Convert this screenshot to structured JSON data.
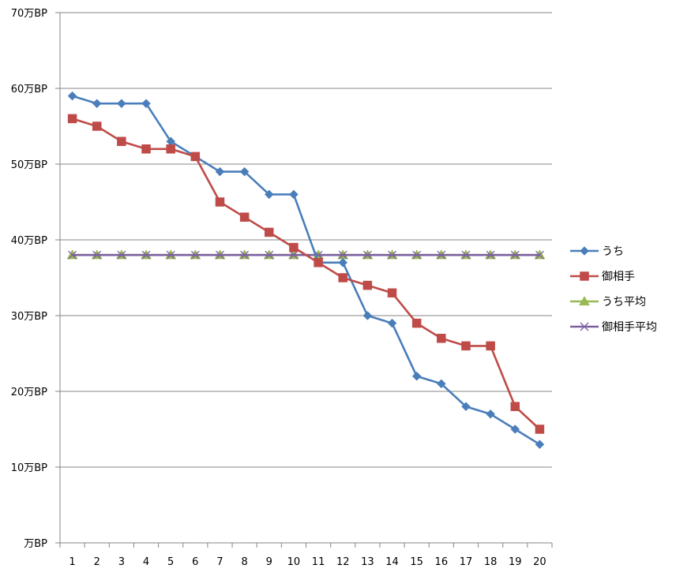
{
  "chart_data": {
    "type": "line",
    "title": "",
    "xlabel": "",
    "ylabel": "",
    "categories": [
      "1",
      "2",
      "3",
      "4",
      "5",
      "6",
      "7",
      "8",
      "9",
      "10",
      "11",
      "12",
      "13",
      "14",
      "15",
      "16",
      "17",
      "18",
      "19",
      "20"
    ],
    "ylim": [
      0,
      70
    ],
    "yticks": [
      {
        "value": 0,
        "label": "万BP"
      },
      {
        "value": 10,
        "label": "10万BP"
      },
      {
        "value": 20,
        "label": "20万BP"
      },
      {
        "value": 30,
        "label": "30万BP"
      },
      {
        "value": 40,
        "label": "40万BP"
      },
      {
        "value": 50,
        "label": "50万BP"
      },
      {
        "value": 60,
        "label": "60万BP"
      },
      {
        "value": 70,
        "label": "70万BP"
      }
    ],
    "grid": true,
    "legend_position": "right",
    "series": [
      {
        "name": "うち",
        "color": "#4a7ebb",
        "marker": "diamond",
        "values": [
          59,
          58,
          58,
          58,
          53,
          51,
          49,
          49,
          46,
          46,
          37,
          37,
          30,
          29,
          22,
          21,
          18,
          17,
          15,
          13
        ]
      },
      {
        "name": "御相手",
        "color": "#be4b48",
        "marker": "square",
        "values": [
          56,
          55,
          53,
          52,
          52,
          51,
          45,
          43,
          41,
          39,
          37,
          35,
          34,
          33,
          29,
          27,
          26,
          26,
          18,
          15
        ]
      },
      {
        "name": "うち平均",
        "color": "#98b954",
        "marker": "triangle",
        "values": [
          38,
          38,
          38,
          38,
          38,
          38,
          38,
          38,
          38,
          38,
          38,
          38,
          38,
          38,
          38,
          38,
          38,
          38,
          38,
          38
        ]
      },
      {
        "name": "御相手平均",
        "color": "#7d60a0",
        "marker": "x",
        "values": [
          38,
          38,
          38,
          38,
          38,
          38,
          38,
          38,
          38,
          38,
          38,
          38,
          38,
          38,
          38,
          38,
          38,
          38,
          38,
          38
        ]
      }
    ]
  }
}
